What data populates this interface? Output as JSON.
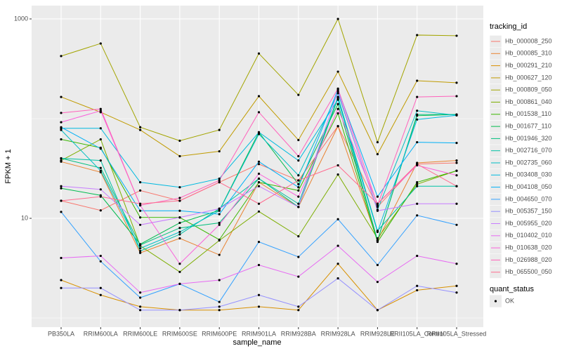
{
  "chart_data": {
    "type": "line",
    "log_y": true,
    "grid": true,
    "xlabel": "sample_name",
    "ylabel": "FPKM + 1",
    "legend_title": "tracking_id",
    "quant_status_title": "quant_status",
    "quant_status_levels": [
      "OK"
    ],
    "categories": [
      "PB350LA",
      "RRIM600LA",
      "RRIM600LE",
      "RRIM600SE",
      "RRIM600PE",
      "RRIM901LA",
      "RRIM928BA",
      "RRIM928LA",
      "RRIM928LE",
      "RRII105LA_Control",
      "RRII105LA_Stressed"
    ],
    "ylim": [
      0.81,
      1360
    ],
    "yticks": [
      10,
      1000
    ],
    "series": [
      {
        "name": "Hb_000008_250",
        "color": "#F8766D",
        "values": [
          15,
          12,
          19,
          15,
          23,
          35,
          24,
          84,
          13,
          35,
          36
        ]
      },
      {
        "name": "Hb_000085_310",
        "color": "#EA8331",
        "values": [
          37,
          29,
          4.5,
          6.3,
          4.3,
          23,
          13,
          84,
          6,
          36,
          38
        ]
      },
      {
        "name": "Hb_000291_210",
        "color": "#D89000",
        "values": [
          2.4,
          1.7,
          1.3,
          1.2,
          1.2,
          1.3,
          1.2,
          3.5,
          1.2,
          1.9,
          2.1
        ]
      },
      {
        "name": "Hb_000627_120",
        "color": "#C09B00",
        "values": [
          165,
          116,
          77,
          42,
          47,
          168,
          61,
          296,
          44,
          240,
          229
        ]
      },
      {
        "name": "Hb_000809_050",
        "color": "#A3A500",
        "values": [
          424,
          567,
          82,
          60,
          77,
          450,
          173,
          1000,
          58,
          689,
          678
        ]
      },
      {
        "name": "Hb_000861_040",
        "color": "#7CAE00",
        "values": [
          38,
          62,
          5.3,
          2.9,
          6,
          11.7,
          6.6,
          27.5,
          6.3,
          22,
          30
        ]
      },
      {
        "name": "Hb_001538_110",
        "color": "#39B600",
        "values": [
          62,
          51,
          10.2,
          10.2,
          6.1,
          23,
          19,
          113,
          5.8,
          23,
          30
        ]
      },
      {
        "name": "Hb_001677_110",
        "color": "#00BB4E",
        "values": [
          20,
          17,
          5.5,
          9,
          12,
          73,
          22,
          140,
          6,
          107,
          110
        ]
      },
      {
        "name": "Hb_001946_320",
        "color": "#00BF7D",
        "values": [
          40,
          32,
          5.4,
          8,
          9,
          25,
          13,
          160,
          6,
          110,
          110
        ]
      },
      {
        "name": "Hb_002716_070",
        "color": "#00C1A3",
        "values": [
          40,
          38,
          4.7,
          6.9,
          12.5,
          25,
          14,
          165,
          7.5,
          21,
          21
        ]
      },
      {
        "name": "Hb_002735_060",
        "color": "#00BFC4",
        "values": [
          77,
          30,
          5,
          7.3,
          11.9,
          70,
          27,
          180,
          12.2,
          120,
          108
        ]
      },
      {
        "name": "Hb_003408_030",
        "color": "#00BAE0",
        "values": [
          80,
          80,
          23,
          20.5,
          25,
          73,
          38,
          155,
          7.3,
          98,
          108
        ]
      },
      {
        "name": "Hb_004108_050",
        "color": "#00B0F6",
        "values": [
          82,
          50,
          11.9,
          11.9,
          11,
          37,
          20.5,
          195,
          16.5,
          58,
          57
        ]
      },
      {
        "name": "Hb_004650_070",
        "color": "#35A2FF",
        "values": [
          11.6,
          3.7,
          1.6,
          2.2,
          1.45,
          5.8,
          4.1,
          9.8,
          3.4,
          10.7,
          8.6
        ]
      },
      {
        "name": "Hb_005357_150",
        "color": "#9590FF",
        "values": [
          2,
          2,
          1.2,
          1.2,
          1.3,
          1.7,
          1.3,
          2.5,
          1.2,
          2.1,
          1.8
        ]
      },
      {
        "name": "Hb_005955_020",
        "color": "#C77CFF",
        "values": [
          21,
          19.5,
          8.6,
          10.2,
          12.5,
          21,
          13,
          188,
          11.9,
          14,
          14
        ]
      },
      {
        "name": "Hb_010402_010",
        "color": "#E76BF3",
        "values": [
          4,
          4.2,
          1.8,
          2.2,
          2.4,
          3.4,
          2.6,
          5.3,
          2.3,
          4.2,
          3.5
        ]
      },
      {
        "name": "Hb_010638_020",
        "color": "#FA62DB",
        "values": [
          92,
          120,
          13.5,
          3.5,
          8.6,
          28,
          16.5,
          125,
          14,
          34,
          27
        ]
      },
      {
        "name": "Hb_026988_020",
        "color": "#FF62BC",
        "values": [
          114,
          125,
          13.5,
          16,
          24,
          116,
          42,
          200,
          13.5,
          165,
          168
        ]
      },
      {
        "name": "Hb_065500_050",
        "color": "#FF6C90",
        "values": [
          15,
          16.5,
          14,
          15,
          23,
          14,
          24,
          34,
          14,
          35,
          21
        ]
      }
    ]
  }
}
